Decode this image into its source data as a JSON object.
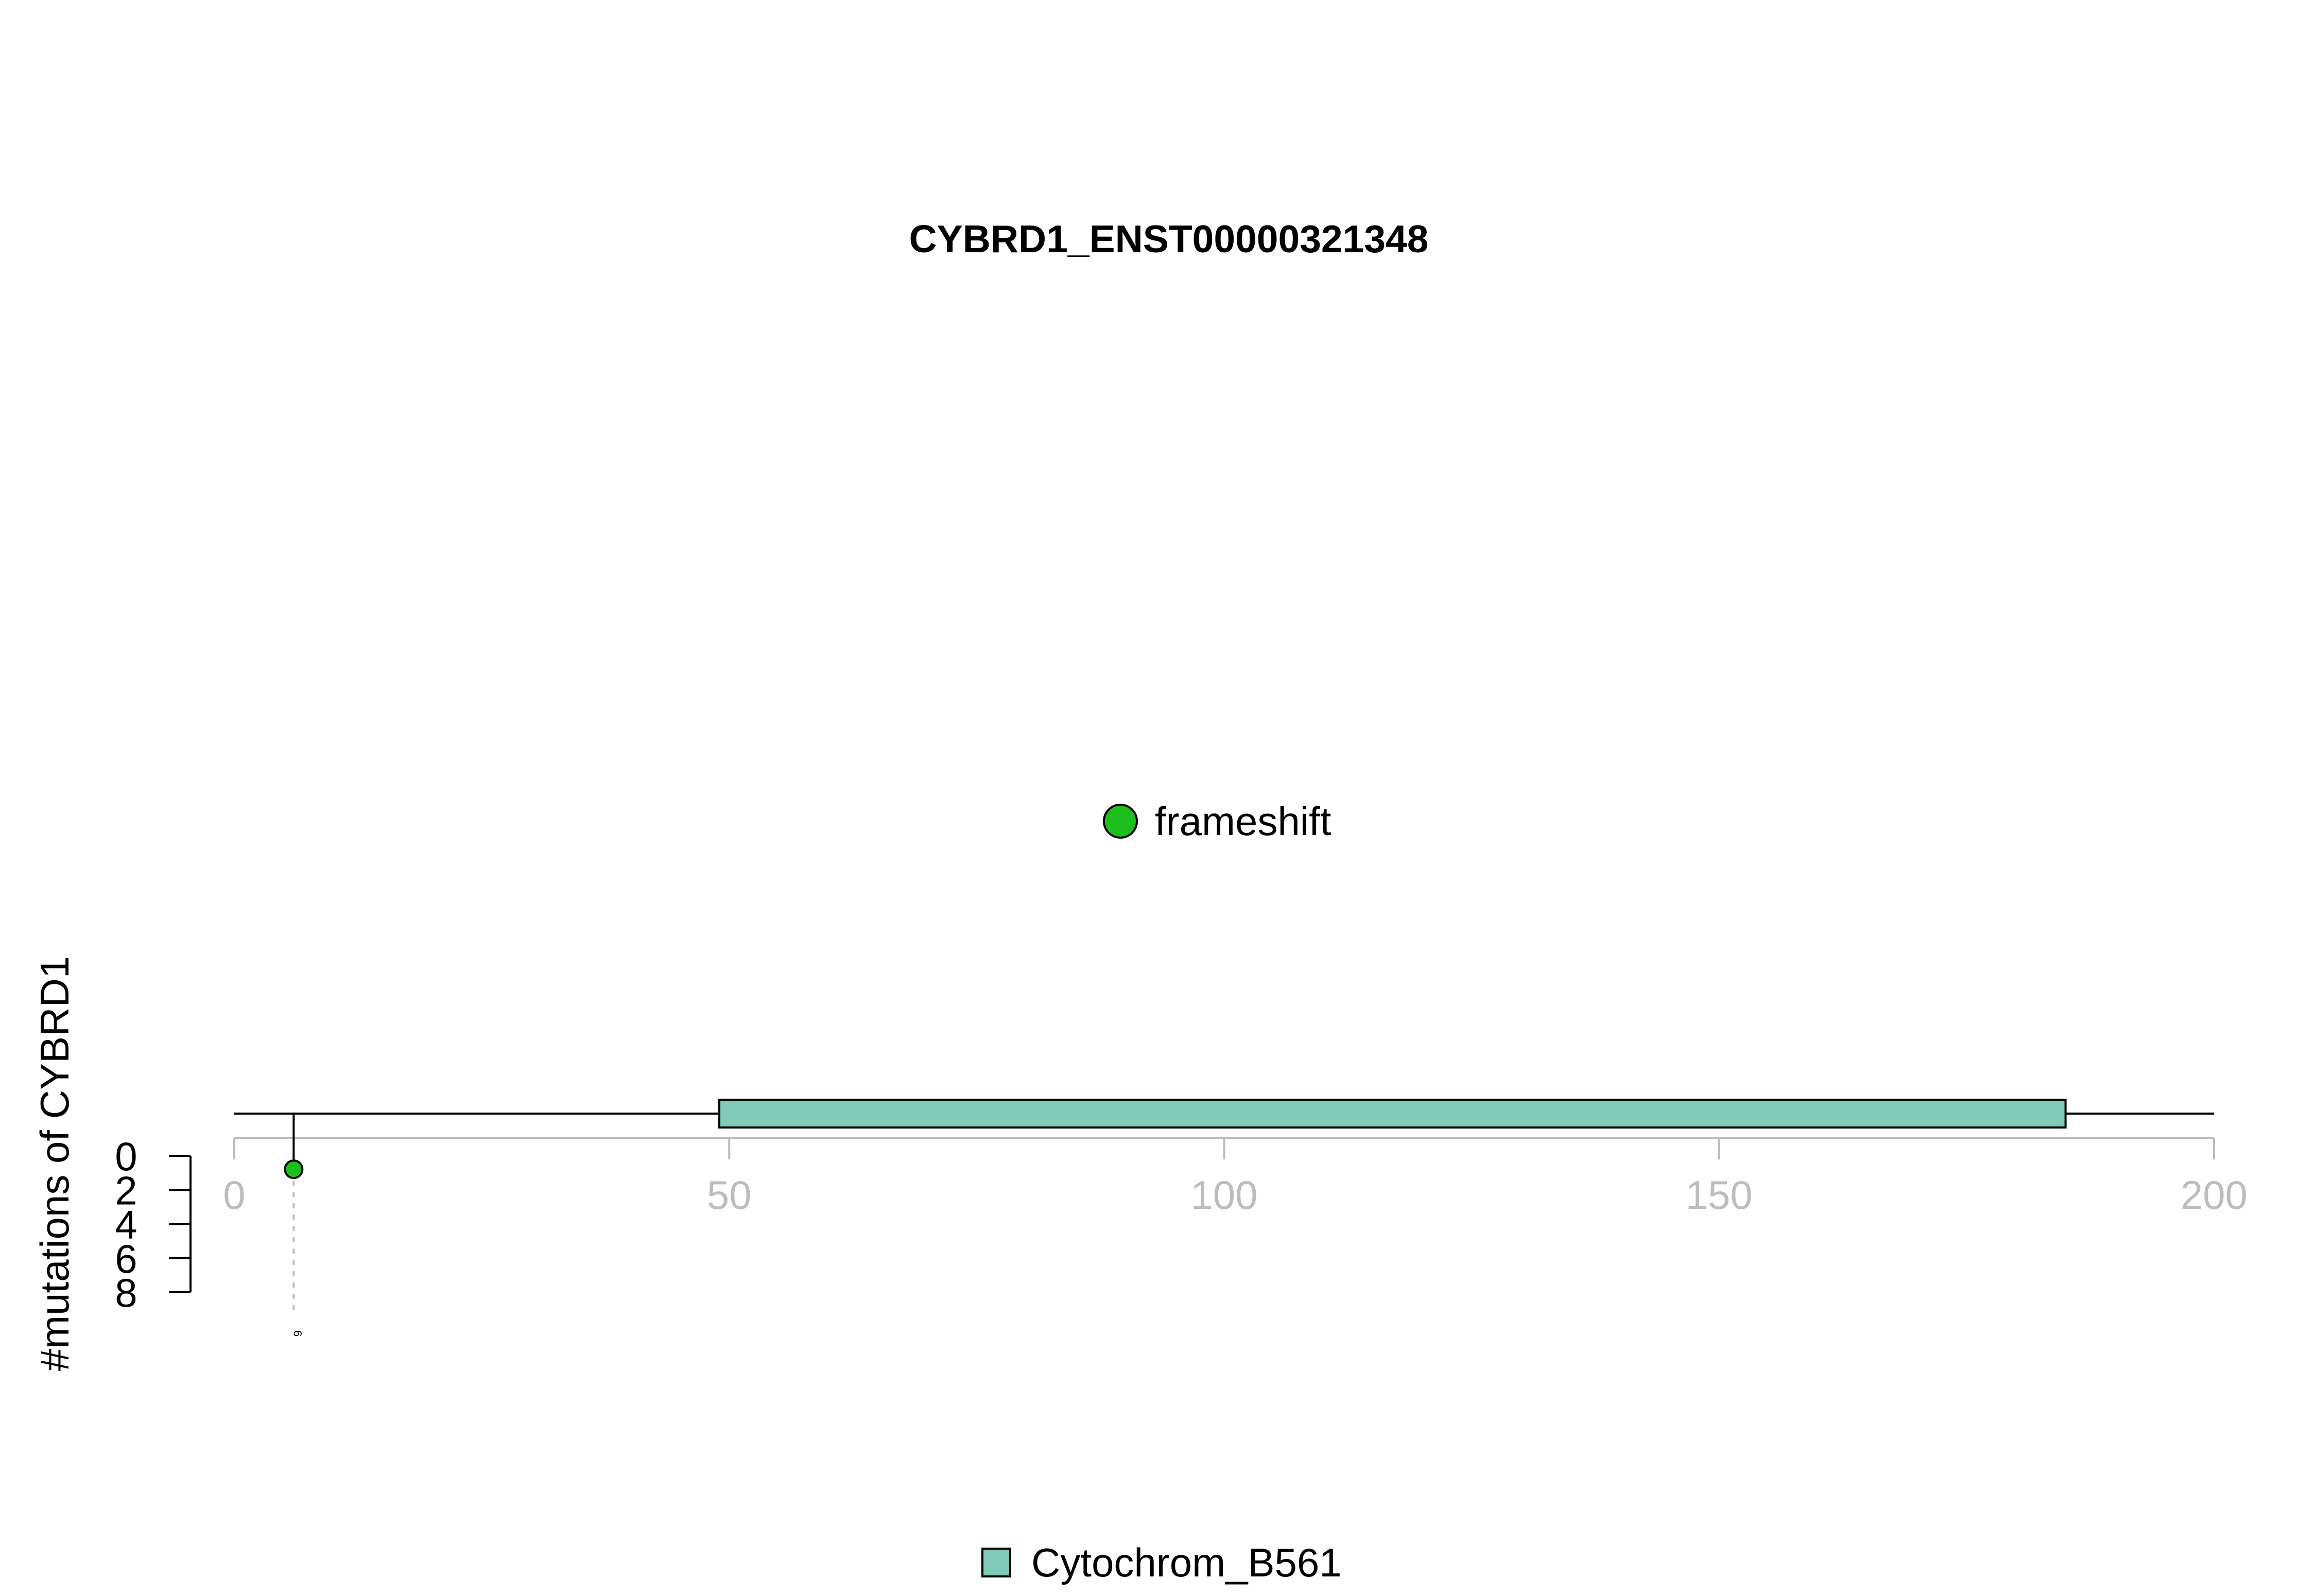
{
  "chart_data": {
    "type": "lollipop",
    "title": "CYBRD1_ENST00000321348",
    "ylabel": "#mutations of CYBRD1",
    "xlim": [
      0,
      200
    ],
    "x_ticks": [
      0,
      50,
      100,
      150,
      200
    ],
    "x_tick_labels": [
      "0",
      "50",
      "100",
      "150",
      "200"
    ],
    "ylim": [
      0,
      8
    ],
    "y_ticks": [
      0,
      2,
      4,
      6,
      8
    ],
    "y_tick_labels": [
      "0",
      "2",
      "4",
      "6",
      "8"
    ],
    "protein_length": 200,
    "domains": [
      {
        "name": "Cytochrom_B561",
        "start": 49,
        "end": 185,
        "color": "#7fcbb8"
      }
    ],
    "mutations": [
      {
        "position": 6,
        "count": 1,
        "type": "frameshift",
        "label": "6",
        "color": "#1dbf1d"
      }
    ],
    "mutation_legend": [
      {
        "label": "frameshift",
        "color": "#1dbf1d"
      }
    ],
    "domain_legend": [
      {
        "label": "Cytochrom_B561",
        "color": "#7fcbb8"
      }
    ]
  }
}
